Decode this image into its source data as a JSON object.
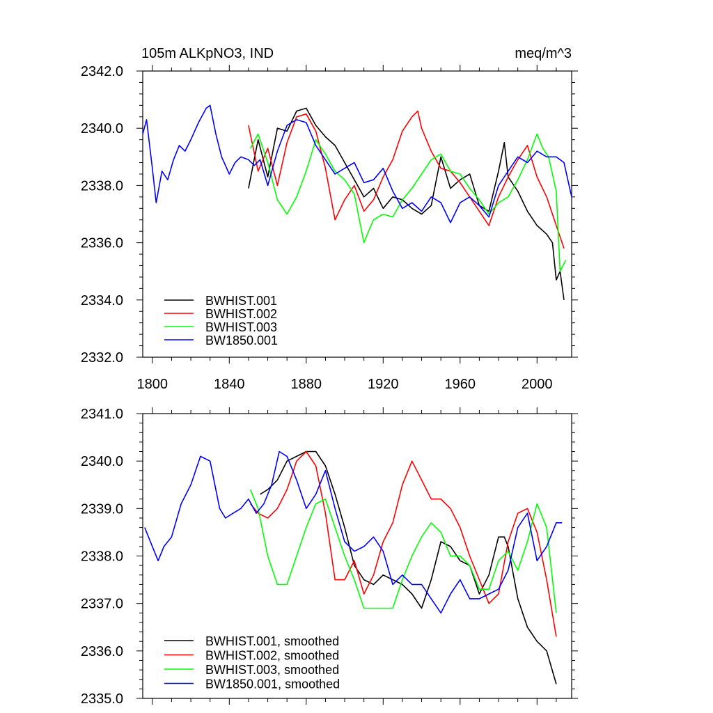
{
  "chart_data": [
    {
      "type": "line",
      "title_left": "105m ALKpNO3, IND",
      "title_right": "meq/m^3",
      "xlim": [
        1795,
        2018
      ],
      "ylim": [
        2332,
        2342
      ],
      "x_ticks": [
        1800,
        1840,
        1880,
        1920,
        1960,
        2000
      ],
      "y_ticks": [
        2332,
        2334,
        2336,
        2338,
        2340,
        2342
      ],
      "y_tick_labels": [
        "2332.0",
        "2334.0",
        "2336.0",
        "2338.0",
        "2340.0",
        "2342.0"
      ],
      "series": [
        {
          "name": "BWHIST.001",
          "color": "#000000",
          "x": [
            1850,
            1855,
            1860,
            1865,
            1870,
            1875,
            1880,
            1885,
            1890,
            1895,
            1900,
            1905,
            1910,
            1915,
            1920,
            1925,
            1930,
            1935,
            1940,
            1945,
            1950,
            1955,
            1960,
            1965,
            1970,
            1975,
            1980,
            1983,
            1985,
            1990,
            1995,
            2000,
            2005,
            2008,
            2010,
            2012,
            2014
          ],
          "y": [
            2337.9,
            2339.6,
            2338.3,
            2340.0,
            2339.9,
            2340.6,
            2340.7,
            2340.1,
            2339.7,
            2339.4,
            2338.8,
            2338.2,
            2337.6,
            2337.9,
            2337.2,
            2337.6,
            2337.5,
            2337.2,
            2337.0,
            2337.3,
            2339.0,
            2337.9,
            2338.2,
            2338.4,
            2337.3,
            2337.1,
            2338.5,
            2339.5,
            2338.3,
            2337.8,
            2337.1,
            2336.6,
            2336.3,
            2336.0,
            2334.7,
            2335.0,
            2334.0
          ]
        },
        {
          "name": "BWHIST.002",
          "color": "#ff0000",
          "x": [
            1850,
            1855,
            1860,
            1865,
            1870,
            1875,
            1880,
            1885,
            1890,
            1895,
            1900,
            1905,
            1910,
            1915,
            1920,
            1925,
            1930,
            1935,
            1938,
            1940,
            1945,
            1950,
            1955,
            1960,
            1965,
            1970,
            1975,
            1980,
            1985,
            1990,
            1995,
            2000,
            2005,
            2010,
            2014
          ],
          "y": [
            2340.1,
            2338.5,
            2339.3,
            2338.0,
            2339.5,
            2340.4,
            2340.5,
            2339.9,
            2338.6,
            2336.8,
            2337.5,
            2338.0,
            2337.1,
            2337.5,
            2338.3,
            2338.9,
            2339.9,
            2340.4,
            2340.6,
            2340.0,
            2339.2,
            2338.6,
            2338.5,
            2338.1,
            2337.6,
            2337.1,
            2336.6,
            2337.6,
            2338.3,
            2338.9,
            2339.4,
            2338.3,
            2337.6,
            2336.6,
            2335.8
          ]
        },
        {
          "name": "BWHIST.003",
          "color": "#00ff00",
          "x": [
            1851,
            1855,
            1860,
            1865,
            1870,
            1875,
            1880,
            1885,
            1890,
            1895,
            1900,
            1905,
            1910,
            1913,
            1915,
            1920,
            1925,
            1930,
            1935,
            1940,
            1945,
            1950,
            1955,
            1960,
            1965,
            1970,
            1975,
            1980,
            1985,
            1990,
            1995,
            2000,
            2003,
            2006,
            2010,
            2012,
            2015
          ],
          "y": [
            2339.3,
            2339.8,
            2338.8,
            2337.5,
            2337.0,
            2337.6,
            2338.5,
            2339.6,
            2339.1,
            2338.5,
            2338.2,
            2337.7,
            2336.0,
            2336.5,
            2336.8,
            2337.0,
            2336.9,
            2337.5,
            2337.9,
            2338.4,
            2338.9,
            2339.1,
            2338.5,
            2338.4,
            2337.9,
            2337.5,
            2337.0,
            2337.4,
            2337.6,
            2338.2,
            2338.9,
            2339.8,
            2339.3,
            2339.0,
            2337.8,
            2335.0,
            2335.4
          ]
        },
        {
          "name": "BW1850.001",
          "color": "#0000ff",
          "x": [
            1795,
            1797,
            1800,
            1802,
            1805,
            1808,
            1811,
            1814,
            1817,
            1820,
            1824,
            1828,
            1830,
            1833,
            1836,
            1840,
            1843,
            1846,
            1850,
            1853,
            1856,
            1860,
            1865,
            1870,
            1875,
            1880,
            1885,
            1890,
            1895,
            1900,
            1905,
            1910,
            1915,
            1920,
            1925,
            1930,
            1935,
            1940,
            1945,
            1950,
            1955,
            1960,
            1965,
            1970,
            1975,
            1980,
            1985,
            1990,
            1995,
            2000,
            2005,
            2010,
            2014,
            2018
          ],
          "y": [
            2339.8,
            2340.3,
            2338.6,
            2337.4,
            2338.5,
            2338.2,
            2338.9,
            2339.4,
            2339.2,
            2339.6,
            2340.2,
            2340.7,
            2340.8,
            2339.8,
            2339.0,
            2338.4,
            2338.8,
            2339.0,
            2338.9,
            2338.7,
            2338.9,
            2338.0,
            2339.2,
            2340.1,
            2340.3,
            2340.2,
            2339.4,
            2338.9,
            2338.4,
            2338.6,
            2338.8,
            2338.1,
            2338.2,
            2338.6,
            2337.8,
            2337.2,
            2337.4,
            2337.1,
            2337.6,
            2337.4,
            2336.7,
            2337.4,
            2337.6,
            2337.3,
            2336.9,
            2338.0,
            2338.5,
            2339.0,
            2338.8,
            2339.2,
            2339.0,
            2339.0,
            2338.8,
            2337.6
          ]
        }
      ]
    },
    {
      "type": "line",
      "xlim": [
        1795,
        2018
      ],
      "ylim": [
        2335,
        2341
      ],
      "x_ticks": [
        1800,
        1840,
        1880,
        1920,
        1960,
        2000
      ],
      "y_ticks": [
        2335,
        2336,
        2337,
        2338,
        2339,
        2340,
        2341
      ],
      "y_tick_labels": [
        "2335.0",
        "2336.0",
        "2337.0",
        "2338.0",
        "2339.0",
        "2340.0",
        "2341.0"
      ],
      "series": [
        {
          "name": "BWHIST.001, smoothed",
          "color": "#000000",
          "x": [
            1856,
            1860,
            1865,
            1870,
            1875,
            1880,
            1885,
            1890,
            1895,
            1900,
            1905,
            1910,
            1915,
            1920,
            1925,
            1930,
            1935,
            1940,
            1945,
            1950,
            1955,
            1960,
            1965,
            1970,
            1975,
            1980,
            1983,
            1985,
            1990,
            1995,
            2000,
            2005,
            2010
          ],
          "y": [
            2339.3,
            2339.4,
            2339.6,
            2340.0,
            2340.1,
            2340.2,
            2340.2,
            2339.9,
            2339.3,
            2338.6,
            2337.8,
            2337.5,
            2337.4,
            2337.6,
            2337.5,
            2337.4,
            2337.2,
            2336.9,
            2337.5,
            2338.3,
            2338.2,
            2337.9,
            2337.8,
            2337.2,
            2337.6,
            2338.4,
            2338.4,
            2338.2,
            2337.1,
            2336.5,
            2336.2,
            2336.0,
            2335.3
          ]
        },
        {
          "name": "BWHIST.002, smoothed",
          "color": "#ff0000",
          "x": [
            1851,
            1855,
            1860,
            1865,
            1870,
            1875,
            1880,
            1885,
            1890,
            1895,
            1900,
            1905,
            1910,
            1915,
            1920,
            1925,
            1930,
            1935,
            1940,
            1945,
            1950,
            1955,
            1960,
            1965,
            1970,
            1975,
            1980,
            1985,
            1990,
            1995,
            2000,
            2005,
            2010
          ],
          "y": [
            2339.1,
            2338.9,
            2338.8,
            2339.0,
            2339.4,
            2340.0,
            2340.2,
            2339.9,
            2338.9,
            2337.5,
            2337.5,
            2337.9,
            2337.2,
            2337.6,
            2338.3,
            2338.7,
            2339.5,
            2340.0,
            2339.6,
            2339.2,
            2339.2,
            2339.0,
            2338.6,
            2338.0,
            2337.5,
            2337.0,
            2337.2,
            2338.3,
            2338.9,
            2339.0,
            2338.5,
            2337.5,
            2336.3
          ]
        },
        {
          "name": "BWHIST.003, smoothed",
          "color": "#00ff00",
          "x": [
            1851,
            1855,
            1860,
            1865,
            1870,
            1875,
            1880,
            1885,
            1890,
            1895,
            1900,
            1905,
            1910,
            1915,
            1920,
            1925,
            1930,
            1935,
            1940,
            1945,
            1950,
            1955,
            1960,
            1965,
            1970,
            1975,
            1980,
            1985,
            1990,
            1995,
            2000,
            2005,
            2010
          ],
          "y": [
            2339.4,
            2339.0,
            2338.0,
            2337.4,
            2337.4,
            2338.0,
            2338.6,
            2339.1,
            2339.2,
            2338.6,
            2338.0,
            2337.5,
            2336.9,
            2336.9,
            2336.9,
            2336.9,
            2337.5,
            2338.0,
            2338.4,
            2338.7,
            2338.5,
            2338.0,
            2338.0,
            2337.8,
            2337.3,
            2337.3,
            2337.9,
            2338.1,
            2337.7,
            2338.3,
            2339.1,
            2338.6,
            2336.8
          ]
        },
        {
          "name": "BW1850.001, smoothed",
          "color": "#0000ff",
          "x": [
            1796,
            1800,
            1803,
            1806,
            1810,
            1815,
            1820,
            1825,
            1830,
            1835,
            1838,
            1842,
            1846,
            1850,
            1854,
            1858,
            1862,
            1866,
            1870,
            1875,
            1880,
            1885,
            1890,
            1895,
            1900,
            1905,
            1910,
            1915,
            1920,
            1925,
            1930,
            1935,
            1940,
            1945,
            1950,
            1955,
            1960,
            1965,
            1970,
            1975,
            1980,
            1985,
            1990,
            1995,
            2000,
            2005,
            2010,
            2013
          ],
          "y": [
            2338.6,
            2338.2,
            2337.9,
            2338.2,
            2338.4,
            2339.1,
            2339.5,
            2340.1,
            2340.0,
            2339.0,
            2338.8,
            2338.9,
            2339.0,
            2339.2,
            2338.9,
            2339.1,
            2339.5,
            2340.2,
            2340.1,
            2339.6,
            2339.0,
            2339.3,
            2339.8,
            2339.0,
            2338.3,
            2338.1,
            2338.2,
            2338.4,
            2338.1,
            2337.4,
            2337.6,
            2337.4,
            2337.4,
            2337.1,
            2336.8,
            2337.2,
            2337.5,
            2337.1,
            2337.1,
            2337.2,
            2337.3,
            2337.7,
            2338.6,
            2338.9,
            2337.9,
            2338.2,
            2338.7,
            2338.7
          ]
        }
      ]
    }
  ]
}
